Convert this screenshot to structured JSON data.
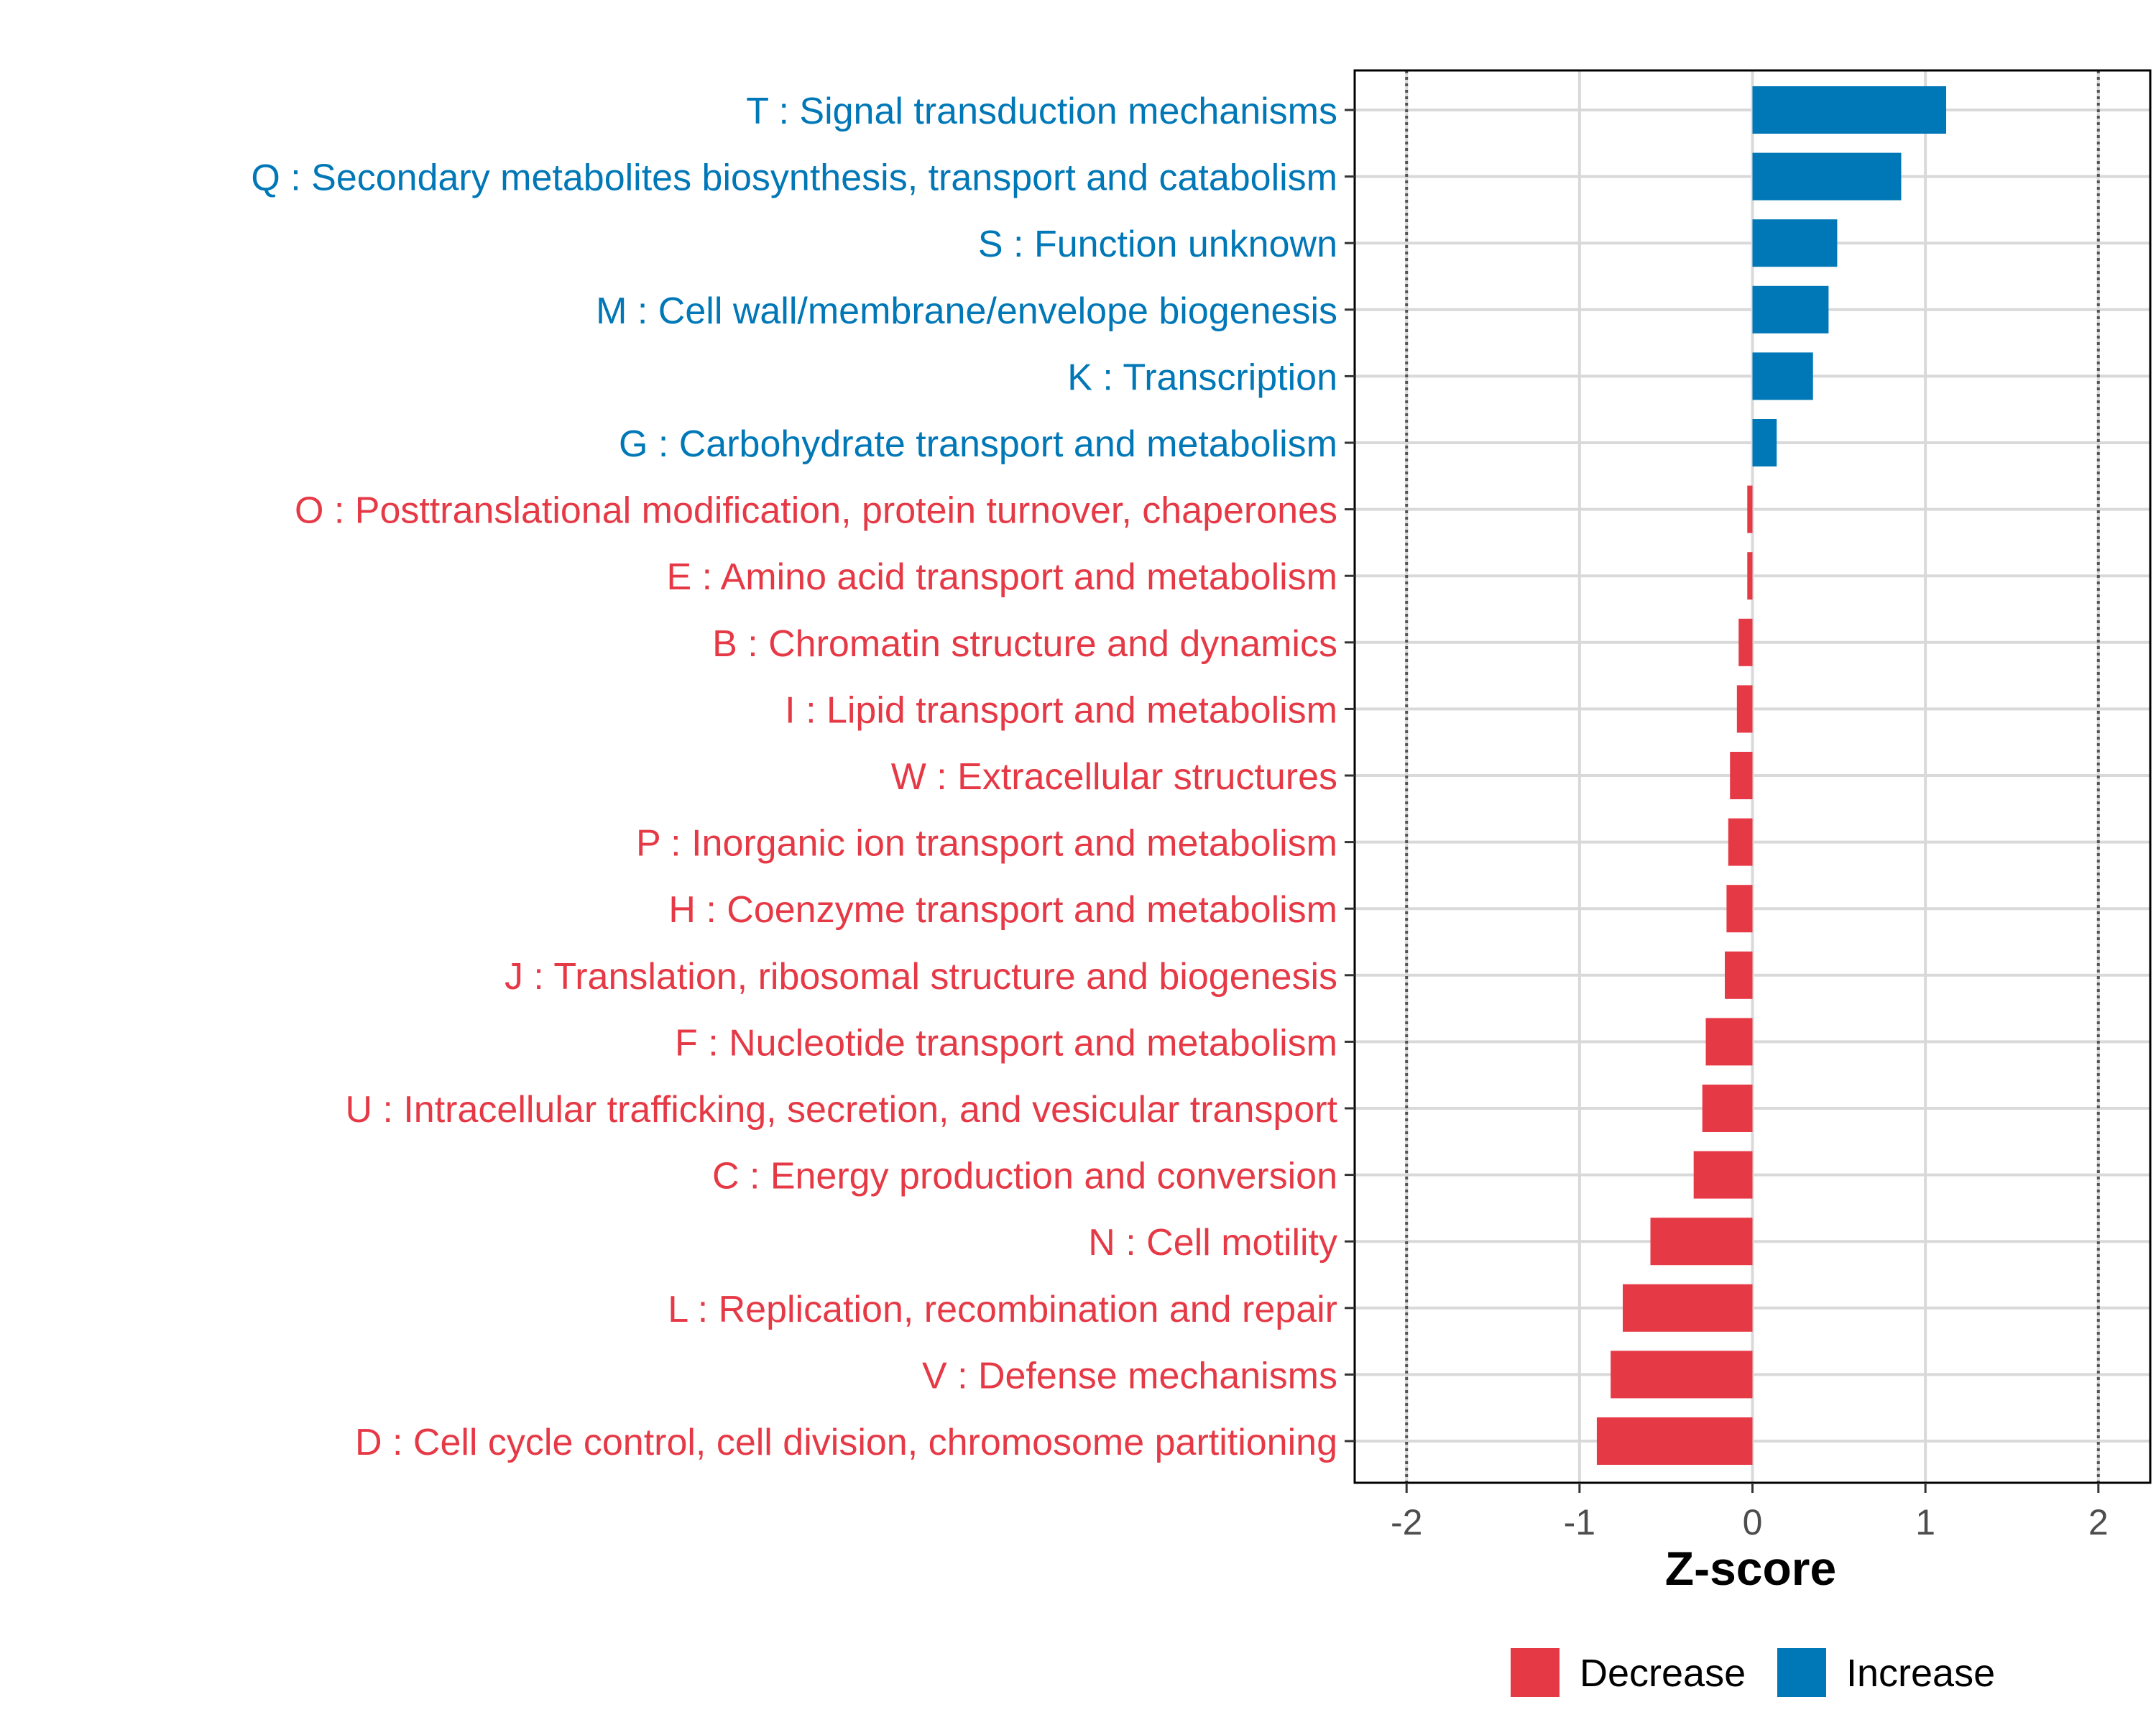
{
  "chart_data": {
    "type": "bar",
    "orientation": "horizontal",
    "xlabel": "Z-score",
    "ylabel": "",
    "xlim": [
      -2.3,
      2.3
    ],
    "xticks": [
      -2,
      -1,
      0,
      1,
      2
    ],
    "xtick_labels": [
      "-2",
      "-1",
      "0",
      "1",
      "2"
    ],
    "reference_lines": [
      -2,
      2
    ],
    "grid": true,
    "legend_position": "bottom",
    "legend": [
      {
        "name": "Decrease",
        "color": "#E63946"
      },
      {
        "name": "Increase",
        "color": "#0077B6"
      }
    ],
    "categories": [
      {
        "label": "T : Signal transduction mechanisms",
        "value": 1.12,
        "group": "Increase"
      },
      {
        "label": "Q : Secondary metabolites biosynthesis, transport and catabolism",
        "value": 0.86,
        "group": "Increase"
      },
      {
        "label": "S : Function unknown",
        "value": 0.49,
        "group": "Increase"
      },
      {
        "label": "M : Cell wall/membrane/envelope biogenesis",
        "value": 0.44,
        "group": "Increase"
      },
      {
        "label": "K : Transcription",
        "value": 0.35,
        "group": "Increase"
      },
      {
        "label": "G : Carbohydrate transport and metabolism",
        "value": 0.14,
        "group": "Increase"
      },
      {
        "label": "O : Posttranslational modification, protein turnover, chaperones",
        "value": -0.03,
        "group": "Decrease"
      },
      {
        "label": "E : Amino acid transport and metabolism",
        "value": -0.03,
        "group": "Decrease"
      },
      {
        "label": "B : Chromatin structure and dynamics",
        "value": -0.08,
        "group": "Decrease"
      },
      {
        "label": "I : Lipid transport and metabolism",
        "value": -0.09,
        "group": "Decrease"
      },
      {
        "label": "W : Extracellular structures",
        "value": -0.13,
        "group": "Decrease"
      },
      {
        "label": "P : Inorganic ion transport and metabolism",
        "value": -0.14,
        "group": "Decrease"
      },
      {
        "label": "H : Coenzyme transport and metabolism",
        "value": -0.15,
        "group": "Decrease"
      },
      {
        "label": "J : Translation, ribosomal structure and biogenesis",
        "value": -0.16,
        "group": "Decrease"
      },
      {
        "label": "F : Nucleotide transport and metabolism",
        "value": -0.27,
        "group": "Decrease"
      },
      {
        "label": "U : Intracellular trafficking, secretion, and vesicular transport",
        "value": -0.29,
        "group": "Decrease"
      },
      {
        "label": "C : Energy production and conversion",
        "value": -0.34,
        "group": "Decrease"
      },
      {
        "label": "N : Cell motility",
        "value": -0.59,
        "group": "Decrease"
      },
      {
        "label": "L : Replication, recombination and repair",
        "value": -0.75,
        "group": "Decrease"
      },
      {
        "label": "V : Defense mechanisms",
        "value": -0.82,
        "group": "Decrease"
      },
      {
        "label": "D : Cell cycle control, cell division, chromosome partitioning",
        "value": -0.9,
        "group": "Decrease"
      }
    ]
  }
}
